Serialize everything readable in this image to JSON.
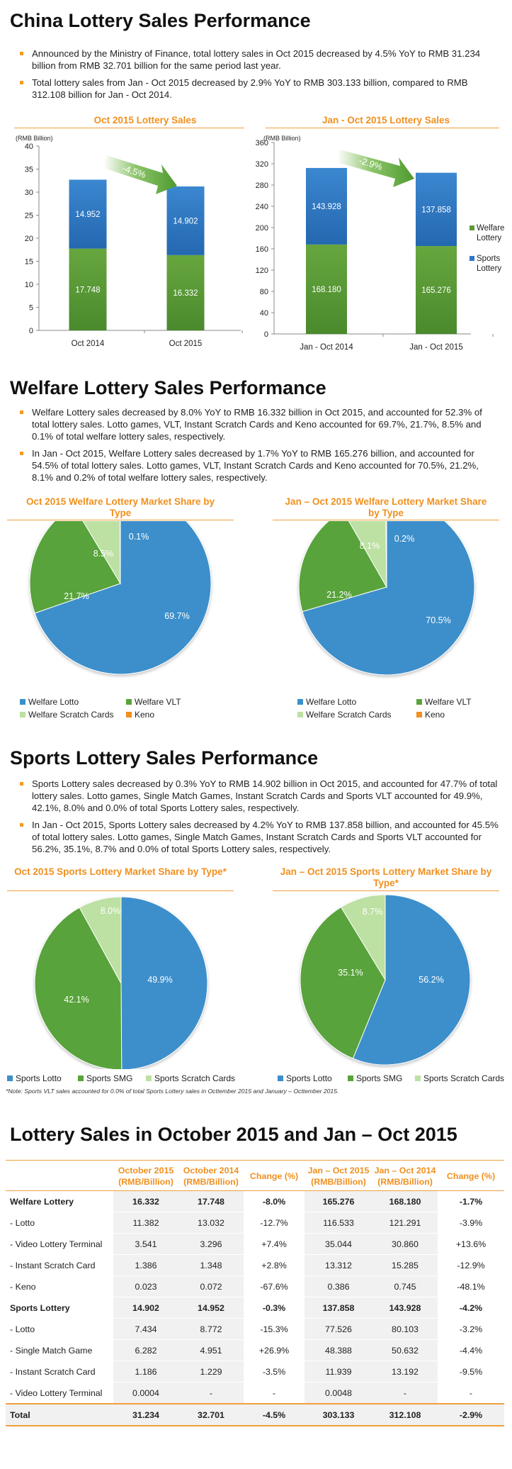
{
  "section1": {
    "title": "China Lottery Sales Performance",
    "bullets": [
      "Announced by the Ministry of Finance, total lottery sales in Oct 2015 decreased by 4.5% YoY to RMB 31.234 billion from RMB 32.701 billion for the same period last year.",
      "Total lottery sales from Jan - Oct 2015 decreased by 2.9% YoY to RMB 303.133 billion, compared to RMB 312.108 billion for Jan - Oct 2014."
    ]
  },
  "section2": {
    "title": "Welfare Lottery Sales Performance",
    "bullets": [
      "Welfare Lottery sales decreased by 8.0% YoY to RMB 16.332 billion in Oct 2015, and accounted for 52.3% of total lottery sales. Lotto games, VLT, Instant Scratch Cards and Keno accounted for 69.7%, 21.7%, 8.5% and 0.1% of total welfare lottery sales, respectively.",
      "In Jan - Oct 2015, Welfare Lottery sales decreased by 1.7% YoY to RMB 165.276 billion, and accounted for 54.5% of total lottery sales. Lotto games, VLT, Instant Scratch Cards and Keno accounted for 70.5%, 21.2%, 8.1% and 0.2% of total welfare lottery sales, respectively."
    ]
  },
  "section3": {
    "title": "Sports Lottery Sales Performance",
    "bullets": [
      "Sports Lottery sales decreased by 0.3% YoY to RMB 14.902 billion in Oct 2015, and accounted for 47.7% of total lottery sales. Lotto games, Single Match Games, Instant Scratch Cards and Sports VLT accounted for 49.9%, 42.1%, 8.0% and 0.0% of total Sports Lottery sales, respectively.",
      "In Jan - Oct 2015, Sports Lottery sales decreased by 4.2% YoY to RMB 137.858 billion, and accounted for 45.5% of total lottery sales. Lotto games, Single Match Games, Instant Scratch Cards and Sports VLT accounted for 56.2%, 35.1%, 8.7% and 0.0% of total Sports Lottery sales, respectively."
    ],
    "note": "*Note: Sports VLT sales accounted for 0.0% of total Sports Lottery sales in Octtember 2015 and January – Octtember 2015."
  },
  "section4": {
    "title": "Lottery Sales in October 2015 and Jan – Oct 2015"
  },
  "colors": {
    "welfare": "#5e9a35",
    "sports": "#2f78c4",
    "lotto": "#3c8fcb",
    "vlt": "#59a33a",
    "scratch": "#bde0a3",
    "keno": "#f0901e",
    "accent": "#f0901e"
  },
  "chart_data": [
    {
      "type": "bar",
      "title": "Oct 2015 Lottery Sales",
      "ylabel": "(RMB Billion)",
      "categories": [
        "Oct 2014",
        "Oct 2015"
      ],
      "series": [
        {
          "name": "Welfare Lottery",
          "values": [
            17.748,
            16.332
          ]
        },
        {
          "name": "Sports Lottery",
          "values": [
            14.952,
            14.902
          ]
        }
      ],
      "ylim": [
        0,
        40
      ],
      "yticks": [
        "0",
        "5",
        "10",
        "15",
        "20",
        "25",
        "30",
        "35",
        "40"
      ],
      "annotation": "-4.5%",
      "stacked": true
    },
    {
      "type": "bar",
      "title": "Jan - Oct 2015 Lottery Sales",
      "ylabel": "(RMB Billion)",
      "categories": [
        "Jan - Oct 2014",
        "Jan - Oct 2015"
      ],
      "series": [
        {
          "name": "Welfare Lottery",
          "values": [
            168.18,
            165.276
          ]
        },
        {
          "name": "Sports Lottery",
          "values": [
            143.928,
            137.858
          ]
        }
      ],
      "value_labels": [
        [
          "168.180",
          "165.276"
        ],
        [
          "143.928",
          "137.858"
        ]
      ],
      "ylim": [
        0,
        360
      ],
      "yticks": [
        "0",
        "40",
        "80",
        "120",
        "160",
        "200",
        "240",
        "280",
        "320",
        "360"
      ],
      "annotation": "-2.9%",
      "legend": [
        "Welfare Lottery",
        "Sports Lottery"
      ],
      "legend_position": "right",
      "stacked": true
    },
    {
      "type": "pie",
      "title": "Oct 2015 Welfare Lottery Market Share by Type",
      "labels": [
        "Welfare Lotto",
        "Welfare VLT",
        "Welfare Scratch Cards",
        "Keno"
      ],
      "values": [
        69.7,
        21.7,
        8.5,
        0.1
      ],
      "value_labels": [
        "69.7%",
        "21.7%",
        "8.5%",
        "0.1%"
      ],
      "legend_position": "bottom"
    },
    {
      "type": "pie",
      "title": "Jan – Oct 2015 Welfare Lottery Market Share by Type",
      "labels": [
        "Welfare Lotto",
        "Welfare VLT",
        "Welfare Scratch Cards",
        "Keno"
      ],
      "values": [
        70.5,
        21.2,
        8.1,
        0.2
      ],
      "value_labels": [
        "70.5%",
        "21.2%",
        "8.1%",
        "0.2%"
      ],
      "legend_position": "bottom"
    },
    {
      "type": "pie",
      "title": "Oct 2015 Sports Lottery Market Share by Type*",
      "labels": [
        "Sports Lotto",
        "Sports SMG",
        "Sports Scratch Cards"
      ],
      "values": [
        49.9,
        42.1,
        8.0
      ],
      "value_labels": [
        "49.9%",
        "42.1%",
        "8.0%"
      ],
      "legend_position": "bottom"
    },
    {
      "type": "pie",
      "title": "Jan – Oct 2015 Sports Lottery Market Share by Type*",
      "labels": [
        "Sports Lotto",
        "Sports SMG",
        "Sports Scratch Cards"
      ],
      "values": [
        56.2,
        35.1,
        8.7
      ],
      "value_labels": [
        "56.2%",
        "35.1%",
        "8.7%"
      ],
      "legend_position": "bottom"
    },
    {
      "type": "table",
      "columns": [
        "",
        "October 2015 (RMB/Billion)",
        "October 2014 (RMB/Billion)",
        "Change (%)",
        "Jan – Oct 2015 (RMB/Billion)",
        "Jan – Oct 2014 (RMB/Billion)",
        "Change (%)"
      ],
      "rows": [
        {
          "group": true,
          "cells": [
            "Welfare Lottery",
            "16.332",
            "17.748",
            "-8.0%",
            "165.276",
            "168.180",
            "-1.7%"
          ]
        },
        {
          "group": false,
          "cells": [
            "- Lotto",
            "11.382",
            "13.032",
            "-12.7%",
            "116.533",
            "121.291",
            "-3.9%"
          ]
        },
        {
          "group": false,
          "cells": [
            "- Video Lottery Terminal",
            "3.541",
            "3.296",
            "+7.4%",
            "35.044",
            "30.860",
            "+13.6%"
          ]
        },
        {
          "group": false,
          "cells": [
            "- Instant Scratch Card",
            "1.386",
            "1.348",
            "+2.8%",
            "13.312",
            "15.285",
            "-12.9%"
          ]
        },
        {
          "group": false,
          "cells": [
            "- Keno",
            "0.023",
            "0.072",
            "-67.6%",
            "0.386",
            "0.745",
            "-48.1%"
          ]
        },
        {
          "group": true,
          "cells": [
            "Sports Lottery",
            "14.902",
            "14.952",
            "-0.3%",
            "137.858",
            "143.928",
            "-4.2%"
          ]
        },
        {
          "group": false,
          "cells": [
            "- Lotto",
            "7.434",
            "8.772",
            "-15.3%",
            "77.526",
            "80.103",
            "-3.2%"
          ]
        },
        {
          "group": false,
          "cells": [
            "- Single Match Game",
            "6.282",
            "4.951",
            "+26.9%",
            "48.388",
            "50.632",
            "-4.4%"
          ]
        },
        {
          "group": false,
          "cells": [
            "- Instant Scratch Card",
            "1.186",
            "1.229",
            "-3.5%",
            "11.939",
            "13.192",
            "-9.5%"
          ]
        },
        {
          "group": false,
          "cells": [
            "- Video Lottery Terminal",
            "0.0004",
            "-",
            "-",
            "0.0048",
            "-",
            "-"
          ]
        },
        {
          "total": true,
          "cells": [
            "Total",
            "31.234",
            "32.701",
            "-4.5%",
            "303.133",
            "312.108",
            "-2.9%"
          ]
        }
      ]
    }
  ]
}
